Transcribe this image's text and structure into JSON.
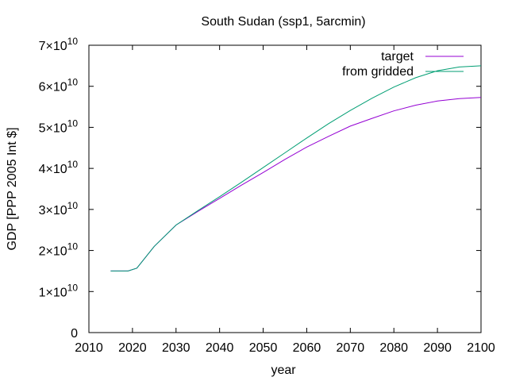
{
  "chart_data": {
    "type": "line",
    "title": "South Sudan (ssp1, 5arcmin)",
    "xlabel": "year",
    "ylabel": "GDP [PPP 2005 Int $]",
    "xlim": [
      2010,
      2100
    ],
    "ylim": [
      0,
      70000000000
    ],
    "x_ticks": [
      "2010",
      "2020",
      "2030",
      "2040",
      "2050",
      "2060",
      "2070",
      "2080",
      "2090",
      "2100"
    ],
    "y_ticks": [
      {
        "value": 0,
        "mantissa": "0",
        "exponent": ""
      },
      {
        "value": 10000000000,
        "mantissa": "1×10",
        "exponent": "10"
      },
      {
        "value": 20000000000,
        "mantissa": "2×10",
        "exponent": "10"
      },
      {
        "value": 30000000000,
        "mantissa": "3×10",
        "exponent": "10"
      },
      {
        "value": 40000000000,
        "mantissa": "4×10",
        "exponent": "10"
      },
      {
        "value": 50000000000,
        "mantissa": "5×10",
        "exponent": "10"
      },
      {
        "value": 60000000000,
        "mantissa": "6×10",
        "exponent": "10"
      },
      {
        "value": 70000000000,
        "mantissa": "7×10",
        "exponent": "10"
      }
    ],
    "legend_position": "top-right",
    "grid": false,
    "series": [
      {
        "name": "target",
        "color": "#9400d3",
        "x": [
          2015,
          2019,
          2021,
          2025,
          2030,
          2035,
          2040,
          2045,
          2050,
          2055,
          2060,
          2065,
          2070,
          2075,
          2080,
          2085,
          2090,
          2095,
          2100
        ],
        "y": [
          15000000000,
          15000000000,
          15700000000,
          21000000000,
          26200000000,
          29500000000,
          32700000000,
          35900000000,
          39000000000,
          42200000000,
          45200000000,
          47800000000,
          50300000000,
          52200000000,
          54000000000,
          55400000000,
          56400000000,
          57000000000,
          57300000000
        ]
      },
      {
        "name": "from gridded",
        "color": "#009e73",
        "x": [
          2015,
          2019,
          2021,
          2025,
          2030,
          2035,
          2040,
          2045,
          2050,
          2055,
          2060,
          2065,
          2070,
          2075,
          2080,
          2085,
          2090,
          2095,
          2100
        ],
        "y": [
          15000000000,
          15000000000,
          15700000000,
          21000000000,
          26200000000,
          29700000000,
          33100000000,
          36600000000,
          40200000000,
          43800000000,
          47400000000,
          50900000000,
          54100000000,
          57100000000,
          59800000000,
          62100000000,
          63800000000,
          64700000000,
          65000000000
        ]
      }
    ]
  }
}
